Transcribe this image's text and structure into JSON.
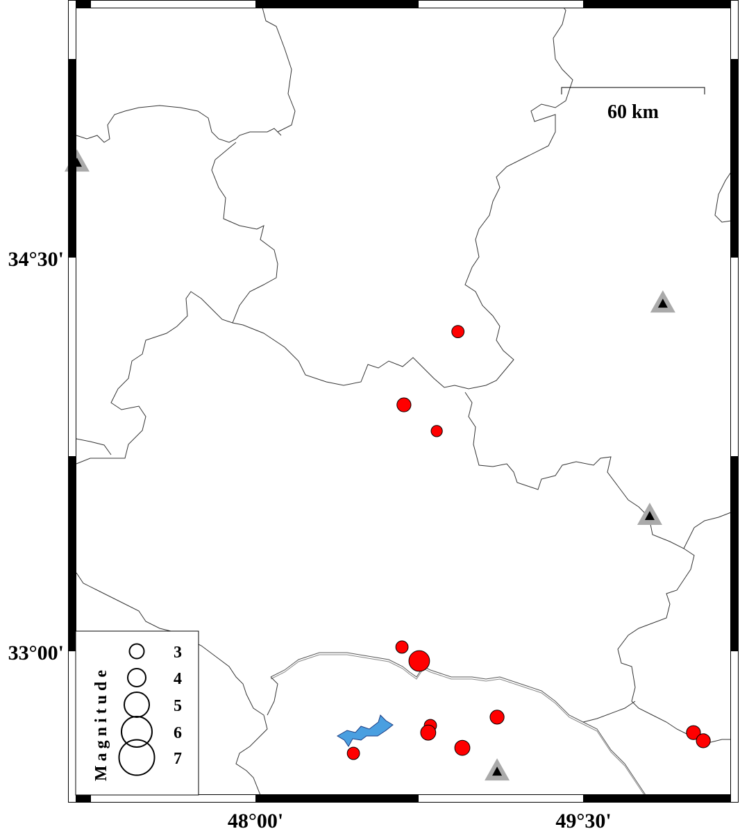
{
  "map": {
    "lon_ticks": [
      {
        "lon": 48.0,
        "label": "48°00'"
      },
      {
        "lon": 49.5,
        "label": "49°30'"
      }
    ],
    "lat_ticks": [
      {
        "lat": 34.5,
        "label": "34°30'"
      },
      {
        "lat": 33.0,
        "label": "33°00'"
      }
    ],
    "scale_bar": {
      "label": "60 km"
    },
    "colors": {
      "event": "#ff0000",
      "station_outer": "#aaaaaa",
      "station_inner": "#000000",
      "lake": "#4a9fe0"
    },
    "events": [
      {
        "lon": 48.926,
        "lat": 34.218,
        "mag": 2.6
      },
      {
        "lon": 48.679,
        "lat": 33.939,
        "mag": 2.9
      },
      {
        "lon": 48.829,
        "lat": 33.839,
        "mag": 2.4
      },
      {
        "lon": 48.67,
        "lat": 33.016,
        "mag": 2.6
      },
      {
        "lon": 48.749,
        "lat": 32.963,
        "mag": 4.1
      },
      {
        "lon": 48.8,
        "lat": 32.717,
        "mag": 2.6
      },
      {
        "lon": 48.79,
        "lat": 32.69,
        "mag": 3.1
      },
      {
        "lon": 49.105,
        "lat": 32.749,
        "mag": 2.9
      },
      {
        "lon": 48.946,
        "lat": 32.632,
        "mag": 3.1
      },
      {
        "lon": 48.448,
        "lat": 32.611,
        "mag": 2.6
      },
      {
        "lon": 50.003,
        "lat": 32.69,
        "mag": 2.9
      },
      {
        "lon": 50.048,
        "lat": 32.659,
        "mag": 2.9
      }
    ],
    "stations": [
      {
        "lon": 47.184,
        "lat": 34.862
      },
      {
        "lon": 49.863,
        "lat": 34.325
      },
      {
        "lon": 49.803,
        "lat": 33.516
      },
      {
        "lon": 49.105,
        "lat": 32.542
      }
    ]
  },
  "legend": {
    "title": "Magnitude",
    "items": [
      {
        "mag": 3,
        "label": "3"
      },
      {
        "mag": 4,
        "label": "4"
      },
      {
        "mag": 5,
        "label": "5"
      },
      {
        "mag": 6,
        "label": "6"
      },
      {
        "mag": 7,
        "label": "7"
      }
    ]
  }
}
